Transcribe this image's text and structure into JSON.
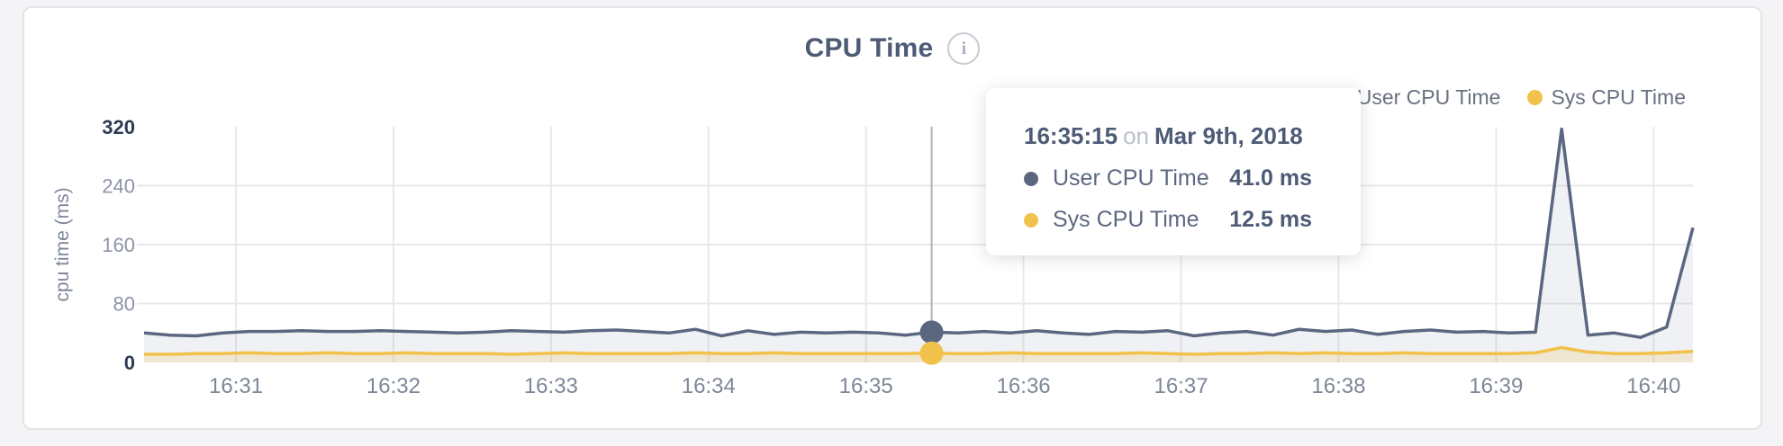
{
  "chart": {
    "info_glyph": "i"
  },
  "chart_data": {
    "type": "area",
    "title": "CPU Time",
    "ylabel": "cpu time (ms)",
    "ylim": [
      0,
      320
    ],
    "y_ticks": [
      0,
      80,
      160,
      240,
      320
    ],
    "x_tick_labels": [
      "16:31",
      "16:32",
      "16:33",
      "16:34",
      "16:35",
      "16:36",
      "16:37",
      "16:38",
      "16:39",
      "16:40"
    ],
    "x_start_time": "16:30:25",
    "x_interval_seconds": 10,
    "grid": true,
    "legend_position": "top-right",
    "series": [
      {
        "name": "User CPU Time",
        "color": "#5b6781",
        "fill": "rgba(91,103,129,0.09)",
        "values": [
          40,
          37,
          36,
          40,
          42,
          42,
          43,
          42,
          42,
          43,
          42,
          41,
          40,
          41,
          43,
          42,
          41,
          43,
          44,
          42,
          40,
          45,
          36,
          43,
          38,
          41,
          40,
          41,
          40,
          37,
          41,
          40,
          42,
          40,
          43,
          40,
          38,
          42,
          41,
          43,
          36,
          40,
          42,
          37,
          45,
          42,
          44,
          38,
          42,
          44,
          41,
          42,
          40,
          41,
          317,
          37,
          40,
          34,
          48,
          183
        ]
      },
      {
        "name": "Sys CPU Time",
        "color": "#f0c14b",
        "fill": "rgba(240,193,75,0.20)",
        "values": [
          11,
          11,
          12,
          12,
          13,
          12,
          12,
          13,
          12,
          12,
          13,
          12,
          12,
          12,
          11,
          12,
          13,
          12,
          12,
          12,
          12,
          13,
          12,
          12,
          13,
          12,
          12,
          12,
          12,
          12,
          12.5,
          12,
          12,
          13,
          12,
          12,
          12,
          12,
          13,
          12,
          11,
          12,
          12,
          13,
          12,
          13,
          12,
          12,
          13,
          12,
          12,
          12,
          12,
          13,
          20,
          14,
          12,
          12,
          13,
          15
        ]
      }
    ],
    "marker": {
      "index": 30,
      "crosshair_color": "#b1b3b8"
    }
  },
  "tooltip": {
    "time": "16:35:15",
    "conjunction": "on",
    "date": "Mar 9th, 2018",
    "rows": [
      {
        "label": "User CPU Time",
        "value": "41.0 ms",
        "color": "#5b6781"
      },
      {
        "label": "Sys CPU Time",
        "value": "12.5 ms",
        "color": "#f0c14b"
      }
    ]
  },
  "colors": {
    "grid": "#e9e9eb",
    "axis_tick_extreme": "#2e3a54",
    "axis_tick_mid": "#8b94a7",
    "axis_label": "#7e8798"
  }
}
